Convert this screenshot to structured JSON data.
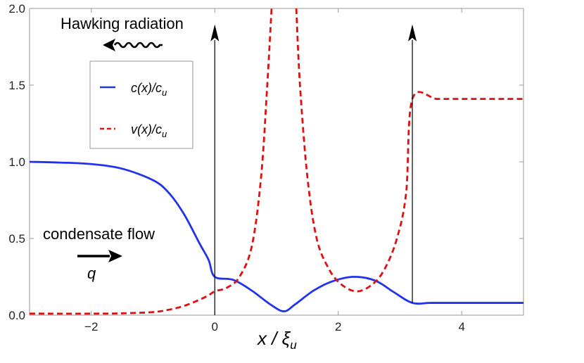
{
  "chart_data": {
    "type": "line",
    "title": "",
    "xlabel": "x / ξ_u",
    "xlabel_main": "x / ξ",
    "xlabel_sub": "u",
    "ylabel": "",
    "xlim": [
      -3,
      5
    ],
    "ylim": [
      0,
      2
    ],
    "x_ticks": [
      -2,
      0,
      2,
      4
    ],
    "x_tick_labels": [
      "−2",
      "0",
      "2",
      "4"
    ],
    "y_ticks": [
      0,
      0.5,
      1,
      1.5,
      2
    ],
    "y_tick_labels": [
      "0.0",
      "0.5",
      "1.0",
      "1.5",
      "2.0"
    ],
    "grid": false,
    "legend_position": "upper-left",
    "series": [
      {
        "name": "c(x)/c_u",
        "label_main": "c(x)/c",
        "label_sub": "u",
        "style": "solid",
        "color": "#2233ee",
        "points": [
          [
            -3,
            1.0
          ],
          [
            -2.5,
            0.995
          ],
          [
            -2,
            0.985
          ],
          [
            -1.5,
            0.955
          ],
          [
            -1,
            0.88
          ],
          [
            -0.75,
            0.8
          ],
          [
            -0.5,
            0.66
          ],
          [
            -0.25,
            0.47
          ],
          [
            -0.1,
            0.36
          ],
          [
            0,
            0.25
          ],
          [
            0.3,
            0.23
          ],
          [
            0.6,
            0.16
          ],
          [
            0.9,
            0.07
          ],
          [
            1.12,
            0.025
          ],
          [
            1.3,
            0.07
          ],
          [
            1.6,
            0.16
          ],
          [
            1.9,
            0.22
          ],
          [
            2.25,
            0.25
          ],
          [
            2.6,
            0.225
          ],
          [
            2.9,
            0.15
          ],
          [
            3.2,
            0.08
          ],
          [
            3.5,
            0.08
          ],
          [
            4,
            0.08
          ],
          [
            5,
            0.08
          ]
        ]
      },
      {
        "name": "v(x)/c_u",
        "label_main": "v(x)/c",
        "label_sub": "u",
        "style": "dashed",
        "color": "#dd1111",
        "segments": [
          [
            [
              -3,
              0.01
            ],
            [
              -2,
              0.01
            ],
            [
              -1.5,
              0.012
            ],
            [
              -1,
              0.02
            ],
            [
              -0.75,
              0.035
            ],
            [
              -0.5,
              0.06
            ],
            [
              -0.25,
              0.1
            ],
            [
              -0.1,
              0.13
            ],
            [
              0,
              0.155
            ],
            [
              0.2,
              0.18
            ],
            [
              0.4,
              0.25
            ],
            [
              0.6,
              0.45
            ],
            [
              0.75,
              0.9
            ],
            [
              0.85,
              1.5
            ],
            [
              0.92,
              2.0
            ]
          ],
          [
            [
              1.32,
              2.0
            ],
            [
              1.38,
              1.5
            ],
            [
              1.5,
              0.9
            ],
            [
              1.65,
              0.5
            ],
            [
              1.85,
              0.3
            ],
            [
              2.05,
              0.2
            ],
            [
              2.3,
              0.155
            ],
            [
              2.55,
              0.2
            ],
            [
              2.75,
              0.3
            ],
            [
              2.95,
              0.5
            ],
            [
              3.1,
              0.8
            ],
            [
              3.2,
              1.41
            ],
            [
              3.6,
              1.41
            ],
            [
              4,
              1.41
            ],
            [
              5,
              1.41
            ]
          ]
        ]
      }
    ],
    "arrows": [
      {
        "name": "mode-arrow-left",
        "x": 0,
        "y_from": 0,
        "y_to": 1.85
      },
      {
        "name": "mode-arrow-right",
        "x": 3.2,
        "y_from": 0.08,
        "y_to": 1.85
      }
    ],
    "annotations": {
      "hawking": "Hawking radiation",
      "condensate": "condensate flow",
      "q": "q"
    }
  }
}
